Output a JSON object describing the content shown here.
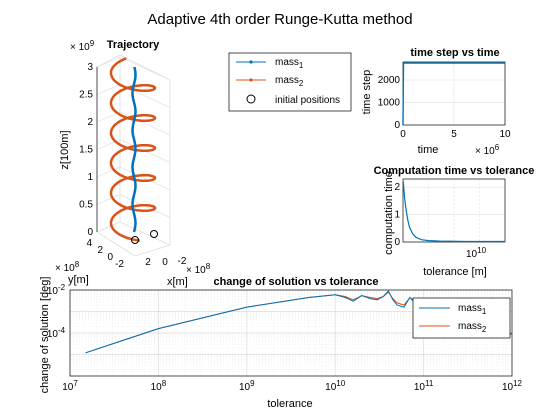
{
  "figure": {
    "title": "Adaptive 4th order Runge-Kutta method"
  },
  "legend": {
    "entries": [
      {
        "label": "mass",
        "sub": "1",
        "color": "#0072BD",
        "marker": "dot-line"
      },
      {
        "label": "mass",
        "sub": "2",
        "color": "#D95319",
        "marker": "dot-line"
      },
      {
        "label": "initial positions",
        "color": "#000000",
        "marker": "circle"
      }
    ]
  },
  "chart_data": [
    {
      "id": "trajectory",
      "type": "line",
      "dimension": "3d",
      "title": "Trajectory",
      "xlabel": "x[m]",
      "ylabel": "y[m]",
      "zlabel": "z[100m]",
      "x_exponent": "× 10",
      "x_exponent_power": "8",
      "y_exponent": "× 10",
      "y_exponent_power": "8",
      "z_exponent": "× 10",
      "z_exponent_power": "9",
      "zticks": [
        "0",
        "0.5",
        "1",
        "1.5",
        "2",
        "2.5",
        "3"
      ],
      "zlim": [
        0,
        3
      ],
      "yticks": [
        "4",
        "2",
        "0",
        "-2"
      ],
      "xticks": [
        "2",
        "0",
        "-2"
      ],
      "series": [
        {
          "name": "mass1",
          "color": "#0072BD",
          "description_turns": 0,
          "radius": 0.1
        },
        {
          "name": "mass2",
          "color": "#D95319",
          "description_turns": 5.5,
          "radius": 2
        }
      ],
      "grid": true
    },
    {
      "id": "timestep",
      "type": "line",
      "title": "time step vs time",
      "xlabel": "time",
      "ylabel": "time step",
      "x_exponent": "× 10",
      "x_exponent_power": "6",
      "xlim": [
        0,
        10
      ],
      "ylim": [
        0,
        2800
      ],
      "xticks": [
        0,
        5,
        10
      ],
      "yticks": [
        0,
        1000,
        2000
      ],
      "series": [
        {
          "name": "time step",
          "color": "#0072BD",
          "x": [
            0,
            0.05,
            10
          ],
          "y": [
            0,
            2750,
            2750
          ]
        }
      ],
      "grid": true
    },
    {
      "id": "comptime",
      "type": "line",
      "title": "Computation time vs tolerance",
      "xlabel": "tolerance [m]",
      "ylabel": "computation time",
      "x_exponent": "10",
      "x_exponent_power": "10",
      "xlim": [
        0,
        3.2
      ],
      "ylim": [
        0,
        2.3
      ],
      "yticks": [
        0,
        1,
        2
      ],
      "series": [
        {
          "name": "computation time",
          "color": "#0072BD",
          "x": [
            0.01,
            0.05,
            0.1,
            0.15,
            0.2,
            0.3,
            0.4,
            0.5,
            0.6,
            0.8,
            1.0,
            1.2,
            1.5,
            2.0,
            2.5,
            3.2
          ],
          "y": [
            2.2,
            1.6,
            1.15,
            0.8,
            0.55,
            0.3,
            0.18,
            0.12,
            0.08,
            0.05,
            0.04,
            0.03,
            0.03,
            0.02,
            0.02,
            0.02
          ]
        }
      ],
      "grid": true
    },
    {
      "id": "change",
      "type": "line",
      "title": "change of solution vs tolerance",
      "xlabel": "tolerance",
      "ylabel": "change of solution [deg]",
      "xscale": "log",
      "yscale": "log",
      "xlim": [
        10000000.0,
        1000000000000.0
      ],
      "ylim": [
        1e-06,
        0.01
      ],
      "xticks": [
        {
          "base": "10",
          "pow": "7"
        },
        {
          "base": "10",
          "pow": "8"
        },
        {
          "base": "10",
          "pow": "9"
        },
        {
          "base": "10",
          "pow": "10"
        },
        {
          "base": "10",
          "pow": "11"
        },
        {
          "base": "10",
          "pow": "12"
        }
      ],
      "yticks": [
        {
          "base": "10",
          "pow": "-4",
          "value": 0.0001
        },
        {
          "base": "10",
          "pow": "-2",
          "value": 0.01
        }
      ],
      "legend_position": "top-right",
      "series": [
        {
          "name": "mass1",
          "color": "#0072BD",
          "x": [
            15000000.0,
            100000000.0,
            1000000000.0,
            5000000000.0,
            10000000000.0,
            13000000000.0,
            16000000000.0,
            20000000000.0,
            25000000000.0,
            30000000000.0,
            35000000000.0,
            40000000000.0,
            45000000000.0,
            50000000000.0,
            60000000000.0,
            70000000000.0,
            80000000000.0,
            100000000000.0,
            130000000000.0,
            150000000000.0,
            200000000000.0,
            250000000000.0,
            300000000000.0,
            350000000000.0,
            400000000000.0,
            500000000000.0,
            600000000000.0,
            700000000000.0,
            800000000000.0,
            1000000000000.0
          ],
          "y": [
            1.2e-05,
            0.00016,
            0.0016,
            0.0045,
            0.006,
            0.0045,
            0.003,
            0.0055,
            0.004,
            0.0035,
            0.005,
            0.009,
            0.0035,
            0.002,
            0.0016,
            0.0045,
            0.0025,
            0.0013,
            0.0007,
            0.0003,
            0.0015,
            0.0008,
            0.0004,
            0.0012,
            0.0009,
            0.0005,
            0.0003,
            0.0012,
            9e-05,
            9e-05
          ]
        },
        {
          "name": "mass2",
          "color": "#D95319",
          "x": [
            15000000.0,
            100000000.0,
            1000000000.0,
            5000000000.0,
            10000000000.0,
            13000000000.0,
            16000000000.0,
            20000000000.0,
            25000000000.0,
            30000000000.0,
            35000000000.0,
            40000000000.0,
            45000000000.0,
            50000000000.0,
            60000000000.0,
            70000000000.0,
            80000000000.0,
            100000000000.0,
            130000000000.0,
            150000000000.0,
            200000000000.0,
            250000000000.0,
            300000000000.0,
            350000000000.0,
            400000000000.0,
            500000000000.0,
            600000000000.0,
            700000000000.0,
            800000000000.0,
            1000000000000.0
          ],
          "y": [
            1.2e-05,
            0.00016,
            0.0016,
            0.0045,
            0.006,
            0.005,
            0.0035,
            0.0055,
            0.0045,
            0.004,
            0.005,
            0.008,
            0.004,
            0.0025,
            0.002,
            0.0045,
            0.003,
            0.0018,
            0.0012,
            0.0009,
            0.0016,
            0.0012,
            0.001,
            0.0014,
            0.0011,
            0.0009,
            0.0008,
            0.001,
            0.0001,
            0.0001
          ]
        }
      ],
      "grid": true
    }
  ]
}
